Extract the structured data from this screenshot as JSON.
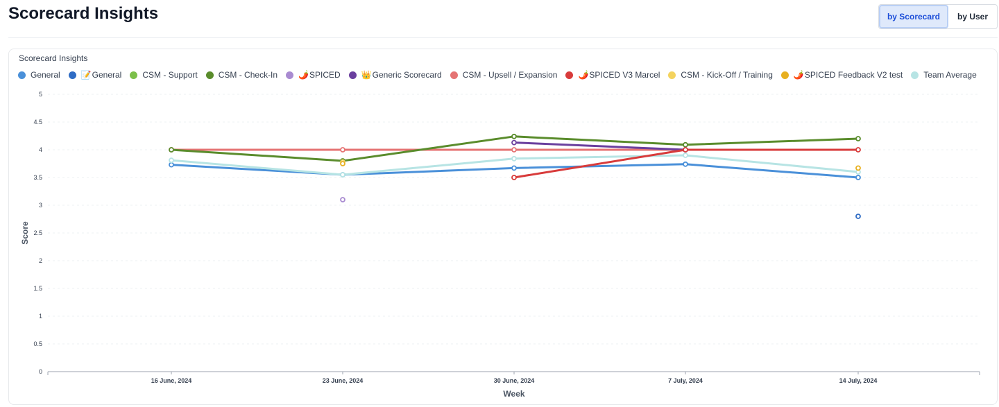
{
  "page": {
    "title": "Scorecard Insights"
  },
  "toggle": {
    "by_scorecard": "by Scorecard",
    "by_user": "by User",
    "selected": "by Scorecard"
  },
  "card": {
    "title": "Scorecard Insights"
  },
  "legend": [
    {
      "label": "General",
      "emoji": "",
      "color": "#4a90d9"
    },
    {
      "label": "General",
      "emoji": "📝",
      "color": "#2f6cc4"
    },
    {
      "label": "CSM - Support",
      "emoji": "",
      "color": "#7cc04a"
    },
    {
      "label": "CSM - Check-In",
      "emoji": "",
      "color": "#5a8c2c"
    },
    {
      "label": "SPICED",
      "emoji": "🌶️",
      "color": "#a98bd1"
    },
    {
      "label": "Generic Scorecard",
      "emoji": "👑",
      "color": "#6a3f9e"
    },
    {
      "label": "CSM - Upsell / Expansion",
      "emoji": "",
      "color": "#e57373"
    },
    {
      "label": "SPICED V3 Marcel",
      "emoji": "🌶️",
      "color": "#d83b3b"
    },
    {
      "label": "CSM - Kick-Off / Training",
      "emoji": "",
      "color": "#f4d35e"
    },
    {
      "label": "SPICED Feedback V2 test",
      "emoji": "🌶️",
      "color": "#e8b020"
    },
    {
      "label": "Team Average",
      "emoji": "",
      "color": "#b7e4e4"
    }
  ],
  "chart_data": {
    "type": "line",
    "title": "Scorecard Insights",
    "xlabel": "Week",
    "ylabel": "Score",
    "ylim": [
      0,
      5
    ],
    "yticks": [
      "0",
      "0.5",
      "1",
      "1.5",
      "2",
      "2.5",
      "3",
      "3.5",
      "4",
      "4.5",
      "5"
    ],
    "categories": [
      "16 June, 2024",
      "23 June, 2024",
      "30 June, 2024",
      "7 July, 2024",
      "14 July, 2024"
    ],
    "grid": true,
    "legend_position": "top-left",
    "series": [
      {
        "name": "CSM - Upsell / Expansion",
        "color": "#e57373",
        "values": [
          4.0,
          4.0,
          4.0,
          4.0,
          null
        ]
      },
      {
        "name": "General",
        "color": "#4a90d9",
        "values": [
          3.73,
          3.55,
          3.67,
          3.74,
          3.5
        ]
      },
      {
        "name": "Team Average",
        "color": "#b7e4e4",
        "values": [
          3.81,
          3.55,
          3.84,
          3.9,
          3.6
        ]
      },
      {
        "name": "CSM - Check-In",
        "color": "#5a8c2c",
        "values": [
          4.0,
          3.8,
          4.24,
          4.09,
          4.2
        ]
      },
      {
        "name": "Generic Scorecard",
        "color": "#6a3f9e",
        "values": [
          null,
          null,
          4.13,
          4.0,
          null
        ]
      },
      {
        "name": "SPICED V3 Marcel",
        "color": "#d83b3b",
        "values": [
          null,
          null,
          3.5,
          4.0,
          4.0
        ]
      },
      {
        "name": "SPICED",
        "color": "#a98bd1",
        "values": [
          null,
          3.1,
          null,
          null,
          null
        ]
      },
      {
        "name": "CSM - Kick-Off / Training",
        "color": "#f4d35e",
        "values": [
          null,
          3.78,
          null,
          null,
          null
        ]
      },
      {
        "name": "SPICED Feedback V2 test",
        "color": "#e8b020",
        "values": [
          null,
          3.75,
          null,
          null,
          3.67
        ]
      },
      {
        "name": "General",
        "color": "#2f6cc4",
        "values": [
          null,
          null,
          null,
          null,
          2.8
        ]
      }
    ]
  }
}
